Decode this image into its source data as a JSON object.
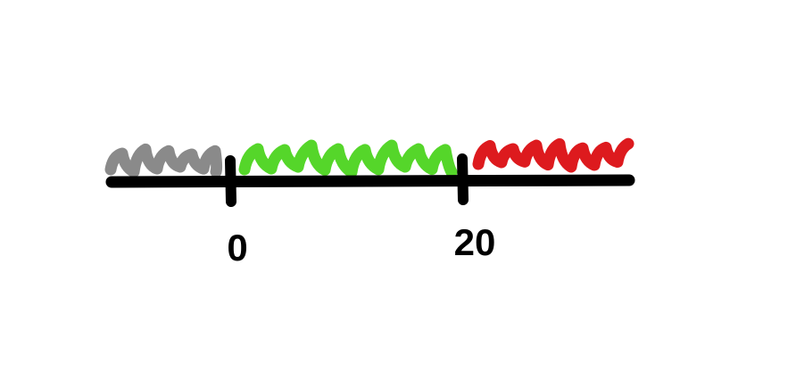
{
  "number_line": {
    "ticks": [
      {
        "label": "0"
      },
      {
        "label": "20"
      }
    ]
  }
}
